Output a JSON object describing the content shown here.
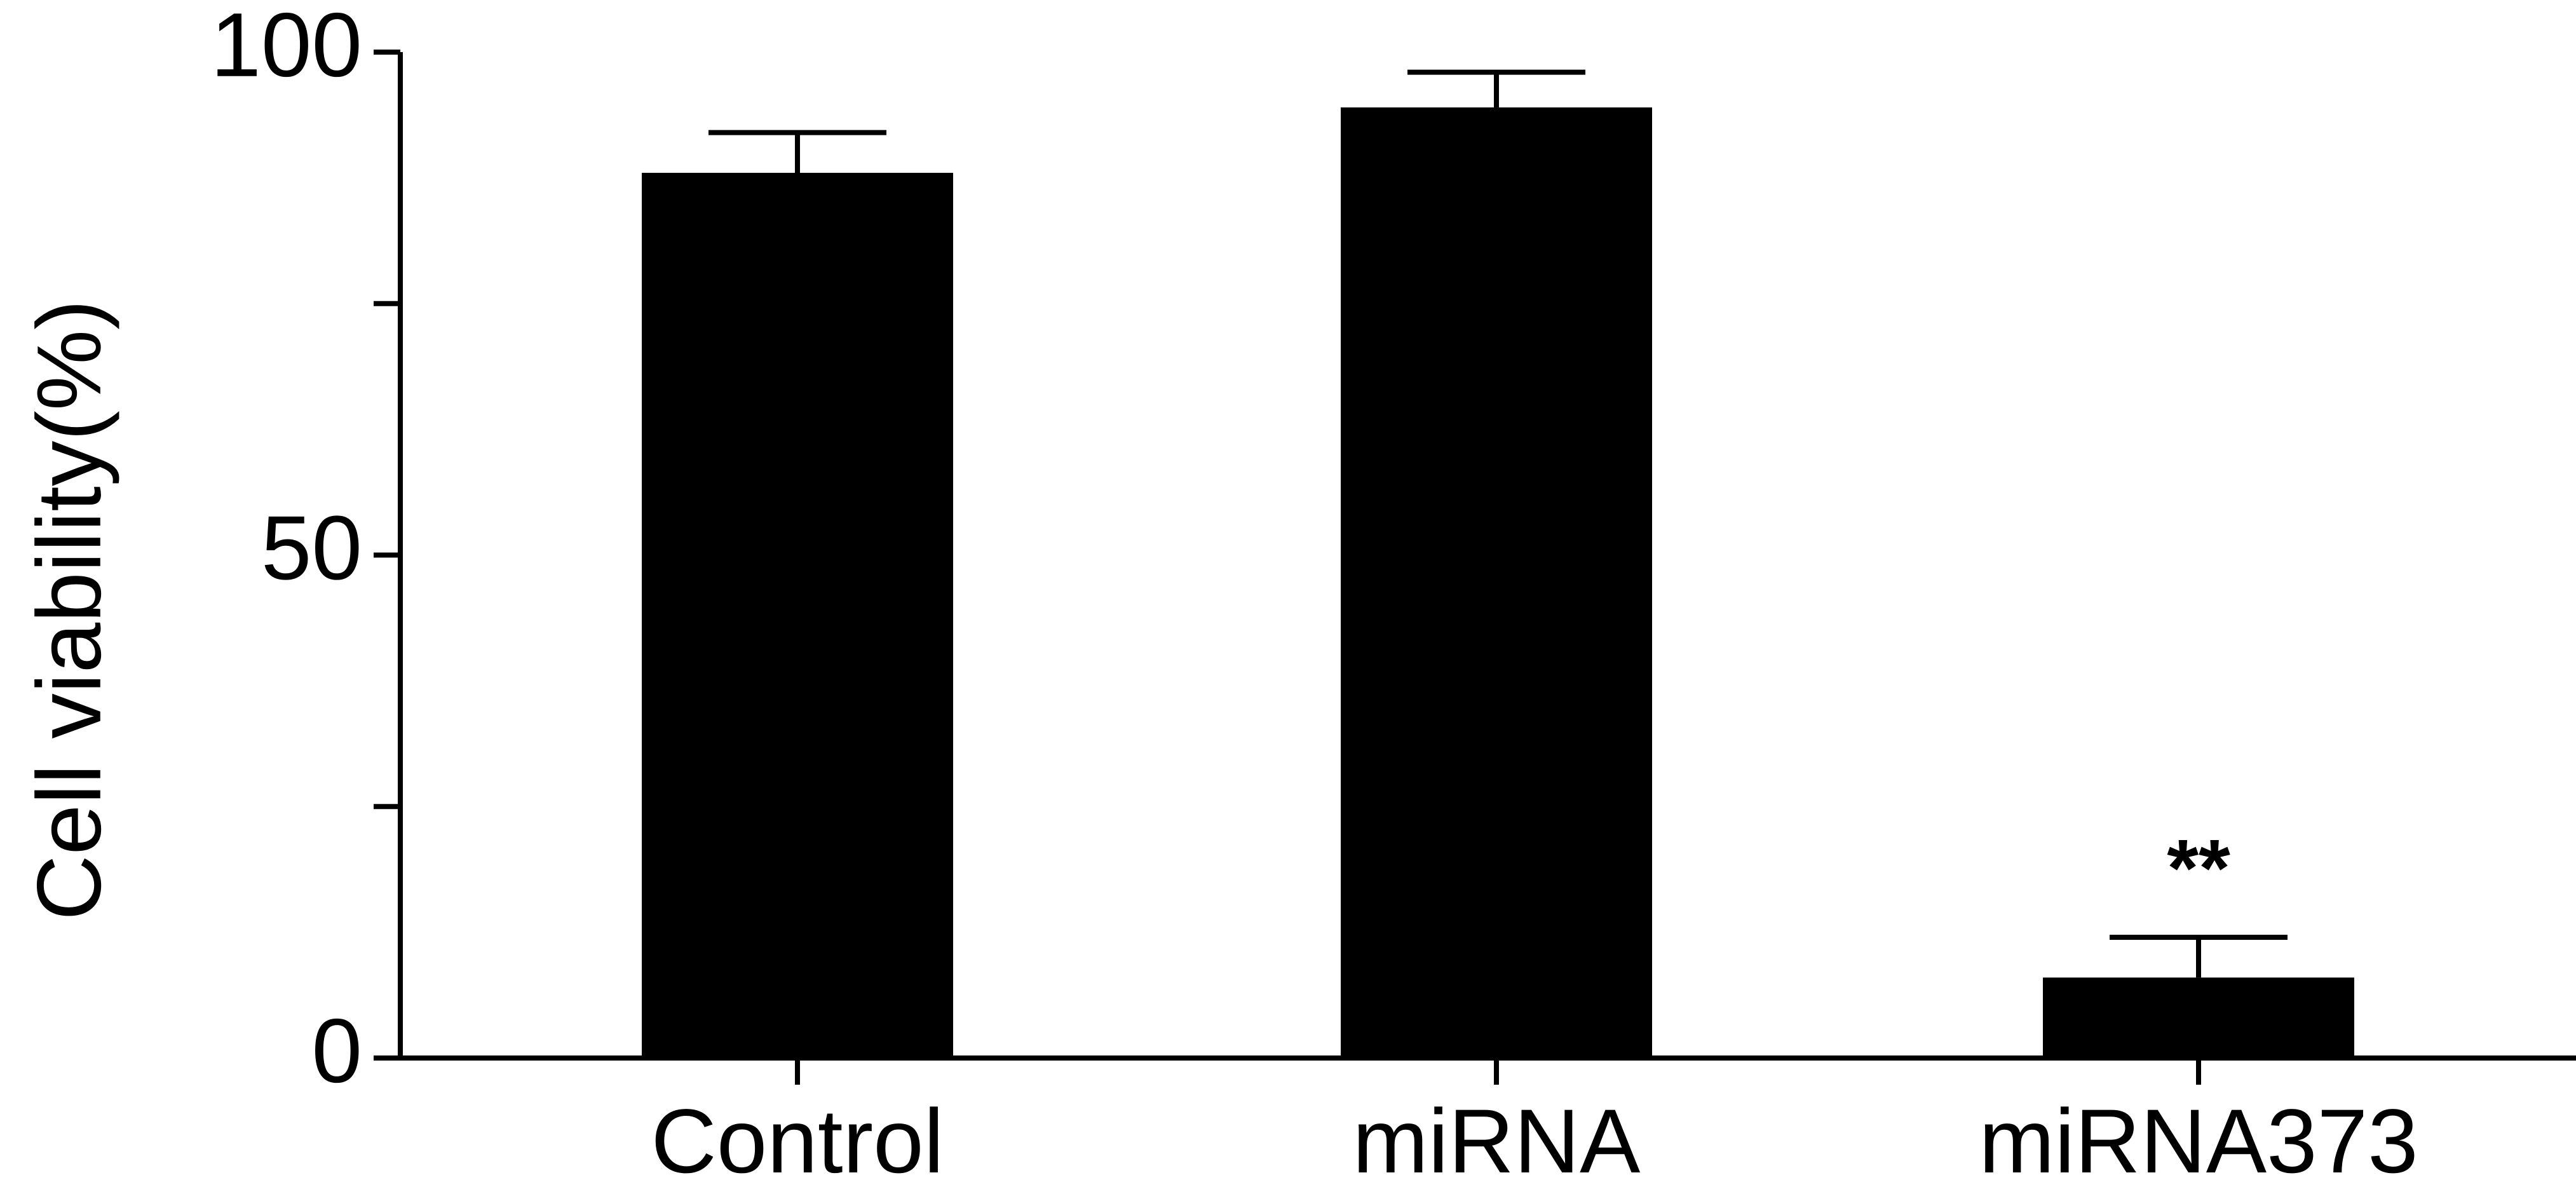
{
  "chart_data": {
    "type": "bar",
    "title": "",
    "xlabel": "",
    "ylabel": "Cell viability(%)",
    "categories": [
      "Control",
      "miRNA",
      "miRNA373"
    ],
    "values": [
      88,
      94.5,
      8
    ],
    "errors": [
      4,
      3.5,
      4
    ],
    "annotations": [
      "",
      "",
      "**"
    ],
    "ylim": [
      0,
      100
    ],
    "yticks": [
      0,
      25,
      50,
      75,
      100
    ],
    "ytick_labels": [
      "0",
      "",
      "50",
      "",
      "100"
    ],
    "grid": false,
    "legend": "none",
    "colors": {
      "bar": "#000000",
      "axis": "#000000",
      "background": "#ffffff"
    }
  }
}
